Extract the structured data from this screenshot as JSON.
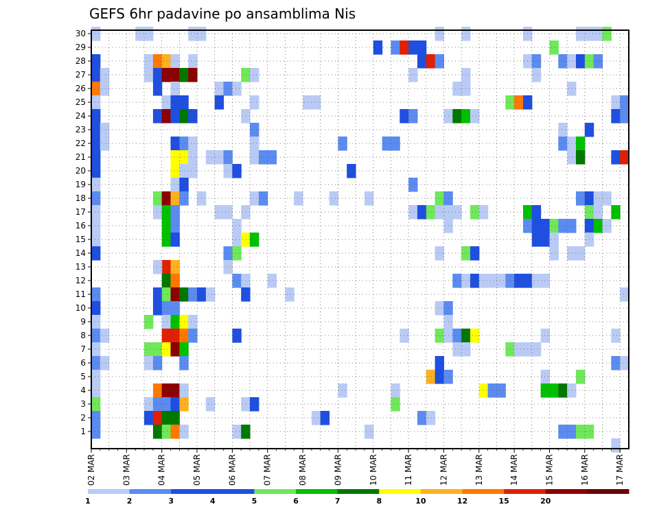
{
  "chart_data": {
    "type": "heatmap",
    "title": "GEFS 6hr padavine po ansamblima Nis",
    "x_categories": [
      "02 MAR",
      "03 MAR",
      "04 MAR",
      "05 MAR",
      "06 MAR",
      "07 MAR",
      "08 MAR",
      "09 MAR",
      "10 MAR",
      "11 MAR",
      "12 MAR",
      "13 MAR",
      "14 MAR",
      "15 MAR",
      "16 MAR",
      "17 MAR"
    ],
    "y_categories": [
      "1",
      "2",
      "3",
      "4",
      "5",
      "6",
      "7",
      "8",
      "9",
      "10",
      "11",
      "12",
      "13",
      "14",
      "15",
      "16",
      "17",
      "18",
      "19",
      "20",
      "21",
      "22",
      "23",
      "24",
      "25",
      "26",
      "27",
      "28",
      "29",
      "30"
    ],
    "grid": true,
    "color_levels": [
      "1",
      "2",
      "3",
      "4",
      "5",
      "6",
      "7",
      "8",
      "10",
      "12",
      "15",
      "20"
    ],
    "color_bins": [
      "#b9cbf5",
      "#5b8bf0",
      "#1f4fe0",
      "#1f4fe0",
      "#6fe85a",
      "#00c000",
      "#007800",
      "#ffff00",
      "#ffb020",
      "#ff7800",
      "#e02000",
      "#8c0000",
      "#6a0000"
    ],
    "cells": [
      [
        0,
        30,
        1
      ],
      [
        5,
        30,
        1
      ],
      [
        6,
        30,
        1
      ],
      [
        11,
        30,
        1
      ],
      [
        12,
        30,
        1
      ],
      [
        39,
        30,
        1
      ],
      [
        42,
        30,
        1
      ],
      [
        49,
        30,
        1
      ],
      [
        55,
        30,
        1
      ],
      [
        56,
        30,
        1
      ],
      [
        57,
        30,
        1
      ],
      [
        58,
        30,
        5
      ],
      [
        32,
        29,
        3
      ],
      [
        34,
        29,
        2
      ],
      [
        35,
        29,
        11
      ],
      [
        36,
        29,
        3
      ],
      [
        37,
        29,
        3
      ],
      [
        52,
        29,
        5
      ],
      [
        0,
        28,
        3
      ],
      [
        11,
        28,
        1
      ],
      [
        6,
        28,
        1
      ],
      [
        7,
        28,
        10
      ],
      [
        8,
        28,
        9
      ],
      [
        9,
        28,
        1
      ],
      [
        37,
        28,
        3
      ],
      [
        38,
        28,
        11
      ],
      [
        39,
        28,
        2
      ],
      [
        49,
        28,
        1
      ],
      [
        50,
        28,
        2
      ],
      [
        53,
        28,
        2
      ],
      [
        54,
        28,
        1
      ],
      [
        55,
        28,
        3
      ],
      [
        56,
        28,
        5
      ],
      [
        57,
        28,
        2
      ],
      [
        0,
        27,
        3
      ],
      [
        1,
        27,
        1
      ],
      [
        6,
        27,
        1
      ],
      [
        7,
        27,
        3
      ],
      [
        8,
        27,
        12
      ],
      [
        9,
        27,
        12
      ],
      [
        10,
        27,
        7
      ],
      [
        11,
        27,
        12
      ],
      [
        17,
        27,
        5
      ],
      [
        18,
        27,
        1
      ],
      [
        36,
        27,
        1
      ],
      [
        42,
        27,
        1
      ],
      [
        50,
        27,
        1
      ],
      [
        0,
        26,
        10
      ],
      [
        1,
        26,
        1
      ],
      [
        7,
        26,
        3
      ],
      [
        9,
        26,
        1
      ],
      [
        14,
        26,
        1
      ],
      [
        15,
        26,
        2
      ],
      [
        16,
        26,
        1
      ],
      [
        41,
        26,
        1
      ],
      [
        42,
        26,
        1
      ],
      [
        54,
        26,
        1
      ],
      [
        0,
        25,
        1
      ],
      [
        8,
        25,
        1
      ],
      [
        9,
        25,
        3
      ],
      [
        10,
        25,
        3
      ],
      [
        14,
        25,
        3
      ],
      [
        18,
        25,
        1
      ],
      [
        24,
        25,
        1
      ],
      [
        25,
        25,
        1
      ],
      [
        47,
        25,
        5
      ],
      [
        48,
        25,
        10
      ],
      [
        49,
        25,
        3
      ],
      [
        59,
        25,
        1
      ],
      [
        60,
        25,
        2
      ],
      [
        0,
        24,
        3
      ],
      [
        7,
        24,
        3
      ],
      [
        8,
        24,
        12
      ],
      [
        9,
        24,
        3
      ],
      [
        10,
        24,
        7
      ],
      [
        11,
        24,
        3
      ],
      [
        17,
        24,
        1
      ],
      [
        35,
        24,
        3
      ],
      [
        36,
        24,
        2
      ],
      [
        40,
        24,
        1
      ],
      [
        41,
        24,
        7
      ],
      [
        42,
        24,
        6
      ],
      [
        43,
        24,
        1
      ],
      [
        59,
        24,
        3
      ],
      [
        60,
        24,
        2
      ],
      [
        0,
        23,
        3
      ],
      [
        1,
        23,
        1
      ],
      [
        18,
        23,
        2
      ],
      [
        53,
        23,
        1
      ],
      [
        56,
        23,
        3
      ],
      [
        0,
        22,
        3
      ],
      [
        1,
        22,
        1
      ],
      [
        9,
        22,
        3
      ],
      [
        10,
        22,
        2
      ],
      [
        11,
        22,
        1
      ],
      [
        18,
        22,
        1
      ],
      [
        28,
        22,
        2
      ],
      [
        33,
        22,
        2
      ],
      [
        34,
        22,
        2
      ],
      [
        53,
        22,
        2
      ],
      [
        54,
        22,
        1
      ],
      [
        55,
        22,
        6
      ],
      [
        0,
        21,
        3
      ],
      [
        9,
        21,
        8
      ],
      [
        10,
        21,
        8
      ],
      [
        11,
        21,
        1
      ],
      [
        13,
        21,
        1
      ],
      [
        14,
        21,
        1
      ],
      [
        15,
        21,
        2
      ],
      [
        18,
        21,
        1
      ],
      [
        19,
        21,
        2
      ],
      [
        20,
        21,
        2
      ],
      [
        54,
        21,
        1
      ],
      [
        55,
        21,
        7
      ],
      [
        59,
        21,
        3
      ],
      [
        60,
        21,
        11
      ],
      [
        0,
        20,
        3
      ],
      [
        9,
        20,
        8
      ],
      [
        10,
        20,
        1
      ],
      [
        11,
        20,
        1
      ],
      [
        15,
        20,
        1
      ],
      [
        16,
        20,
        3
      ],
      [
        29,
        20,
        3
      ],
      [
        0,
        19,
        1
      ],
      [
        9,
        19,
        1
      ],
      [
        10,
        19,
        3
      ],
      [
        36,
        19,
        2
      ],
      [
        0,
        18,
        2
      ],
      [
        7,
        18,
        5
      ],
      [
        8,
        18,
        12
      ],
      [
        9,
        18,
        9
      ],
      [
        10,
        18,
        2
      ],
      [
        12,
        18,
        1
      ],
      [
        18,
        18,
        1
      ],
      [
        19,
        18,
        2
      ],
      [
        23,
        18,
        1
      ],
      [
        27,
        18,
        1
      ],
      [
        31,
        18,
        1
      ],
      [
        39,
        18,
        5
      ],
      [
        40,
        18,
        2
      ],
      [
        55,
        18,
        2
      ],
      [
        56,
        18,
        3
      ],
      [
        57,
        18,
        1
      ],
      [
        58,
        18,
        1
      ],
      [
        0,
        17,
        1
      ],
      [
        7,
        17,
        1
      ],
      [
        8,
        17,
        6
      ],
      [
        9,
        17,
        2
      ],
      [
        14,
        17,
        1
      ],
      [
        15,
        17,
        1
      ],
      [
        17,
        17,
        1
      ],
      [
        36,
        17,
        1
      ],
      [
        37,
        17,
        3
      ],
      [
        38,
        17,
        5
      ],
      [
        39,
        17,
        1
      ],
      [
        40,
        17,
        1
      ],
      [
        41,
        17,
        1
      ],
      [
        43,
        17,
        5
      ],
      [
        44,
        17,
        1
      ],
      [
        49,
        17,
        6
      ],
      [
        50,
        17,
        3
      ],
      [
        56,
        17,
        5
      ],
      [
        57,
        17,
        1
      ],
      [
        59,
        17,
        6
      ],
      [
        0,
        16,
        1
      ],
      [
        8,
        16,
        6
      ],
      [
        9,
        16,
        2
      ],
      [
        16,
        16,
        1
      ],
      [
        40,
        16,
        1
      ],
      [
        49,
        16,
        2
      ],
      [
        50,
        16,
        3
      ],
      [
        51,
        16,
        3
      ],
      [
        52,
        16,
        5
      ],
      [
        53,
        16,
        2
      ],
      [
        54,
        16,
        2
      ],
      [
        56,
        16,
        3
      ],
      [
        57,
        16,
        6
      ],
      [
        58,
        16,
        1
      ],
      [
        0,
        15,
        1
      ],
      [
        8,
        15,
        6
      ],
      [
        9,
        15,
        3
      ],
      [
        16,
        15,
        1
      ],
      [
        17,
        15,
        8
      ],
      [
        18,
        15,
        6
      ],
      [
        50,
        15,
        3
      ],
      [
        51,
        15,
        3
      ],
      [
        52,
        15,
        1
      ],
      [
        56,
        15,
        1
      ],
      [
        0,
        14,
        3
      ],
      [
        15,
        14,
        2
      ],
      [
        16,
        14,
        5
      ],
      [
        39,
        14,
        1
      ],
      [
        42,
        14,
        5
      ],
      [
        43,
        14,
        3
      ],
      [
        52,
        14,
        1
      ],
      [
        54,
        14,
        1
      ],
      [
        55,
        14,
        1
      ],
      [
        8,
        13,
        11
      ],
      [
        9,
        13,
        9
      ],
      [
        15,
        13,
        1
      ],
      [
        7,
        13,
        1
      ],
      [
        8,
        12,
        7
      ],
      [
        9,
        12,
        10
      ],
      [
        16,
        12,
        2
      ],
      [
        17,
        12,
        1
      ],
      [
        20,
        12,
        1
      ],
      [
        41,
        12,
        2
      ],
      [
        42,
        12,
        1
      ],
      [
        43,
        12,
        3
      ],
      [
        44,
        12,
        1
      ],
      [
        45,
        12,
        1
      ],
      [
        46,
        12,
        1
      ],
      [
        47,
        12,
        2
      ],
      [
        48,
        12,
        3
      ],
      [
        49,
        12,
        3
      ],
      [
        50,
        12,
        1
      ],
      [
        51,
        12,
        1
      ],
      [
        0,
        11,
        2
      ],
      [
        7,
        11,
        3
      ],
      [
        8,
        11,
        5
      ],
      [
        9,
        11,
        12
      ],
      [
        10,
        11,
        7
      ],
      [
        11,
        11,
        2
      ],
      [
        12,
        11,
        3
      ],
      [
        13,
        11,
        1
      ],
      [
        17,
        11,
        3
      ],
      [
        22,
        11,
        1
      ],
      [
        60,
        11,
        1
      ],
      [
        0,
        10,
        3
      ],
      [
        7,
        10,
        3
      ],
      [
        8,
        10,
        2
      ],
      [
        9,
        10,
        2
      ],
      [
        39,
        10,
        1
      ],
      [
        40,
        10,
        2
      ],
      [
        0,
        9,
        1
      ],
      [
        6,
        9,
        5
      ],
      [
        8,
        9,
        1
      ],
      [
        9,
        9,
        6
      ],
      [
        10,
        9,
        8
      ],
      [
        11,
        9,
        1
      ],
      [
        40,
        9,
        1
      ],
      [
        0,
        8,
        2
      ],
      [
        1,
        8,
        1
      ],
      [
        8,
        8,
        11
      ],
      [
        9,
        8,
        11
      ],
      [
        10,
        8,
        10
      ],
      [
        11,
        8,
        2
      ],
      [
        16,
        8,
        3
      ],
      [
        35,
        8,
        1
      ],
      [
        39,
        8,
        5
      ],
      [
        40,
        8,
        1
      ],
      [
        41,
        8,
        2
      ],
      [
        42,
        8,
        7
      ],
      [
        43,
        8,
        8
      ],
      [
        51,
        8,
        1
      ],
      [
        59,
        8,
        1
      ],
      [
        0,
        7,
        1
      ],
      [
        6,
        7,
        5
      ],
      [
        7,
        7,
        5
      ],
      [
        8,
        7,
        8
      ],
      [
        9,
        7,
        12
      ],
      [
        10,
        7,
        6
      ],
      [
        41,
        7,
        1
      ],
      [
        42,
        7,
        1
      ],
      [
        47,
        7,
        5
      ],
      [
        48,
        7,
        1
      ],
      [
        49,
        7,
        1
      ],
      [
        50,
        7,
        1
      ],
      [
        0,
        6,
        2
      ],
      [
        1,
        6,
        1
      ],
      [
        6,
        6,
        1
      ],
      [
        7,
        6,
        2
      ],
      [
        10,
        6,
        2
      ],
      [
        39,
        6,
        3
      ],
      [
        59,
        6,
        2
      ],
      [
        60,
        6,
        1
      ],
      [
        0,
        5,
        1
      ],
      [
        38,
        5,
        9
      ],
      [
        39,
        5,
        3
      ],
      [
        40,
        5,
        2
      ],
      [
        51,
        5,
        1
      ],
      [
        55,
        5,
        5
      ],
      [
        0,
        4,
        1
      ],
      [
        7,
        4,
        10
      ],
      [
        8,
        4,
        12
      ],
      [
        9,
        4,
        12
      ],
      [
        10,
        4,
        1
      ],
      [
        28,
        4,
        1
      ],
      [
        34,
        4,
        1
      ],
      [
        44,
        4,
        8
      ],
      [
        45,
        4,
        2
      ],
      [
        46,
        4,
        2
      ],
      [
        51,
        4,
        6
      ],
      [
        52,
        4,
        6
      ],
      [
        53,
        4,
        7
      ],
      [
        54,
        4,
        1
      ],
      [
        0,
        3,
        5
      ],
      [
        6,
        3,
        1
      ],
      [
        7,
        3,
        2
      ],
      [
        8,
        3,
        2
      ],
      [
        9,
        3,
        3
      ],
      [
        10,
        3,
        9
      ],
      [
        13,
        3,
        1
      ],
      [
        17,
        3,
        1
      ],
      [
        18,
        3,
        3
      ],
      [
        34,
        3,
        5
      ],
      [
        0,
        2,
        2
      ],
      [
        6,
        2,
        3
      ],
      [
        7,
        2,
        11
      ],
      [
        8,
        2,
        7
      ],
      [
        9,
        2,
        7
      ],
      [
        25,
        2,
        1
      ],
      [
        26,
        2,
        3
      ],
      [
        37,
        2,
        2
      ],
      [
        38,
        2,
        1
      ],
      [
        0,
        1,
        2
      ],
      [
        7,
        1,
        7
      ],
      [
        8,
        1,
        5
      ],
      [
        9,
        1,
        10
      ],
      [
        10,
        1,
        1
      ],
      [
        16,
        1,
        1
      ],
      [
        17,
        1,
        7
      ],
      [
        31,
        1,
        1
      ],
      [
        53,
        1,
        2
      ],
      [
        54,
        1,
        2
      ],
      [
        55,
        1,
        5
      ],
      [
        56,
        1,
        5
      ],
      [
        59,
        0,
        1
      ]
    ]
  }
}
